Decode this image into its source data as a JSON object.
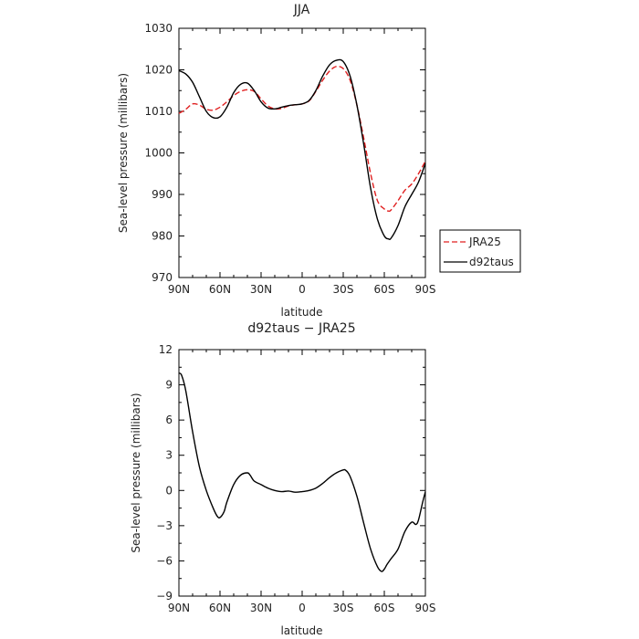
{
  "chart_data": [
    {
      "type": "line",
      "title": "JJA",
      "xlabel": "latitude",
      "ylabel": "Sea-level pressure (millibars)",
      "xlim": [
        90,
        -90
      ],
      "ylim": [
        970,
        1030
      ],
      "x_ticks": [
        90,
        60,
        30,
        0,
        -30,
        -60,
        -90
      ],
      "x_tick_labels": [
        "90N",
        "60N",
        "30N",
        "0",
        "30S",
        "60S",
        "90S"
      ],
      "y_ticks": [
        970,
        980,
        990,
        1000,
        1010,
        1020,
        1030
      ],
      "y_tick_labels": [
        "970",
        "980",
        "990",
        "1000",
        "1010",
        "1020",
        "1030"
      ],
      "grid": false,
      "legend_position": "right",
      "series": [
        {
          "name": "JRA25",
          "color": "#e02020",
          "dash": "dashed",
          "x": [
            90,
            85,
            80,
            75,
            70,
            65,
            60,
            55,
            50,
            45,
            40,
            35,
            30,
            25,
            20,
            15,
            10,
            5,
            0,
            -5,
            -10,
            -15,
            -20,
            -25,
            -30,
            -35,
            -40,
            -45,
            -50,
            -55,
            -60,
            -63,
            -65,
            -70,
            -75,
            -80,
            -85,
            -90
          ],
          "y": [
            1009.5,
            1010.5,
            1011.8,
            1011.5,
            1010.5,
            1010.3,
            1011.0,
            1012.3,
            1013.8,
            1014.8,
            1015.2,
            1014.8,
            1013.0,
            1011.3,
            1010.6,
            1010.7,
            1011.3,
            1011.6,
            1011.8,
            1012.5,
            1014.8,
            1017.5,
            1019.7,
            1020.8,
            1020.3,
            1017.5,
            1011.5,
            1003.5,
            995.0,
            988.5,
            986.5,
            986.0,
            986.3,
            988.5,
            991.0,
            992.5,
            995.0,
            998.0
          ]
        },
        {
          "name": "d92taus",
          "color": "#000000",
          "dash": "solid",
          "x": [
            90,
            85,
            80,
            75,
            70,
            65,
            60,
            55,
            50,
            45,
            40,
            35,
            30,
            25,
            20,
            15,
            10,
            5,
            0,
            -5,
            -10,
            -15,
            -20,
            -25,
            -30,
            -35,
            -40,
            -45,
            -50,
            -55,
            -60,
            -63,
            -65,
            -70,
            -75,
            -80,
            -85,
            -90
          ],
          "y": [
            1019.8,
            1019.0,
            1017.0,
            1013.5,
            1010.0,
            1008.5,
            1008.7,
            1011.0,
            1014.5,
            1016.5,
            1016.8,
            1015.0,
            1012.3,
            1010.8,
            1010.6,
            1011.0,
            1011.4,
            1011.6,
            1011.8,
            1012.6,
            1015.0,
            1018.5,
            1021.2,
            1022.3,
            1022.0,
            1018.5,
            1011.5,
            1002.0,
            991.5,
            984.0,
            980.0,
            979.3,
            979.5,
            982.5,
            987.0,
            990.0,
            993.0,
            997.5
          ]
        }
      ]
    },
    {
      "type": "line",
      "title": "d92taus − JRA25",
      "xlabel": "latitude",
      "ylabel": "Sea-level pressure (millibars)",
      "xlim": [
        90,
        -90
      ],
      "ylim": [
        -9,
        12
      ],
      "x_ticks": [
        90,
        60,
        30,
        0,
        -30,
        -60,
        -90
      ],
      "x_tick_labels": [
        "90N",
        "60N",
        "30N",
        "0",
        "30S",
        "60S",
        "90S"
      ],
      "y_ticks": [
        -9,
        -6,
        -3,
        0,
        3,
        6,
        9,
        12
      ],
      "y_tick_labels": [
        "−9",
        "−6",
        "−3",
        "0",
        "3",
        "6",
        "9",
        "12"
      ],
      "grid": false,
      "series": [
        {
          "color": "#000000",
          "dash": "solid",
          "x": [
            90,
            88,
            85,
            80,
            75,
            70,
            65,
            62,
            60,
            57,
            55,
            50,
            45,
            40,
            38,
            35,
            30,
            25,
            20,
            15,
            10,
            5,
            0,
            -5,
            -10,
            -15,
            -20,
            -25,
            -30,
            -32,
            -35,
            -40,
            -45,
            -50,
            -55,
            -58,
            -60,
            -62,
            -65,
            -70,
            -75,
            -80,
            -83,
            -85,
            -88,
            -90
          ],
          "y": [
            10.0,
            9.8,
            8.5,
            5.0,
            2.0,
            0.0,
            -1.5,
            -2.2,
            -2.3,
            -1.8,
            -1.0,
            0.5,
            1.3,
            1.5,
            1.3,
            0.8,
            0.5,
            0.2,
            0.0,
            -0.1,
            -0.05,
            -0.15,
            -0.1,
            0.0,
            0.2,
            0.6,
            1.1,
            1.5,
            1.75,
            1.7,
            1.2,
            -0.5,
            -2.8,
            -5.0,
            -6.5,
            -6.9,
            -6.7,
            -6.3,
            -5.8,
            -5.0,
            -3.5,
            -2.7,
            -2.9,
            -2.5,
            -1.0,
            -0.1
          ]
        }
      ]
    }
  ]
}
